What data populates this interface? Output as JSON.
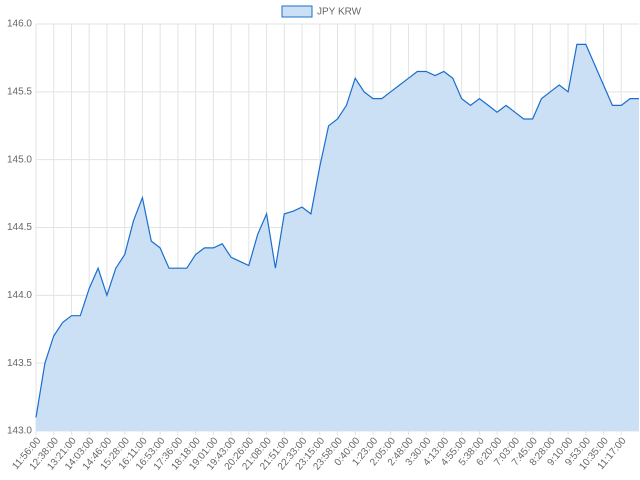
{
  "chart_data": {
    "type": "area",
    "categories": [
      "11:56:00",
      null,
      "12:38:00",
      null,
      "13:21:00",
      null,
      "14:03:00",
      null,
      "14:46:00",
      null,
      "15:28:00",
      null,
      "16:11:00",
      null,
      "16:53:00",
      null,
      "17:36:00",
      null,
      "18:18:00",
      null,
      "19:01:00",
      null,
      "19:43:00",
      null,
      "20:26:00",
      null,
      "21:08:00",
      null,
      "21:51:00",
      null,
      "22:33:00",
      null,
      "23:15:00",
      null,
      "23:58:00",
      null,
      "0:40:00",
      null,
      "1:23:00",
      null,
      "2:05:00",
      null,
      "2:48:00",
      null,
      "3:30:00",
      null,
      "4:13:00",
      null,
      "4:55:00",
      null,
      "5:38:00",
      null,
      "6:20:00",
      null,
      "7:03:00",
      null,
      "7:45:00",
      null,
      "8:28:00",
      null,
      "9:10:00",
      null,
      "9:53:00",
      null,
      "10:35:00",
      null,
      "11:17:00",
      null,
      null
    ],
    "series": [
      {
        "name": "JPY KRW",
        "color": "#1a6fcc",
        "fill": "#cce0f5",
        "values": [
          143.1,
          143.5,
          143.7,
          143.8,
          143.85,
          143.85,
          144.05,
          144.2,
          144.0,
          144.2,
          144.3,
          144.55,
          144.72,
          144.4,
          144.35,
          144.2,
          144.2,
          144.2,
          144.3,
          144.35,
          144.35,
          144.38,
          144.28,
          144.25,
          144.22,
          144.45,
          144.6,
          144.2,
          144.6,
          144.62,
          144.65,
          144.6,
          144.95,
          145.25,
          145.3,
          145.4,
          145.6,
          145.5,
          145.45,
          145.45,
          145.5,
          145.55,
          145.6,
          145.65,
          145.65,
          145.62,
          145.65,
          145.6,
          145.45,
          145.4,
          145.45,
          145.4,
          145.35,
          145.4,
          145.35,
          145.3,
          145.3,
          145.45,
          145.5,
          145.55,
          145.5,
          145.85,
          145.85,
          145.7,
          145.55,
          145.4,
          145.4,
          145.45,
          145.45
        ]
      }
    ],
    "ylim": [
      143.0,
      146.0
    ],
    "yticks": [
      {
        "value": 143.0,
        "label": "143.0"
      },
      {
        "value": 143.5,
        "label": "143.5"
      },
      {
        "value": 144.0,
        "label": "144.0"
      },
      {
        "value": 144.5,
        "label": "144.5"
      },
      {
        "value": 145.0,
        "label": "145.0"
      },
      {
        "value": 145.5,
        "label": "145.5"
      },
      {
        "value": 146.0,
        "label": "146.0"
      }
    ],
    "grid": true,
    "legend": "top"
  }
}
